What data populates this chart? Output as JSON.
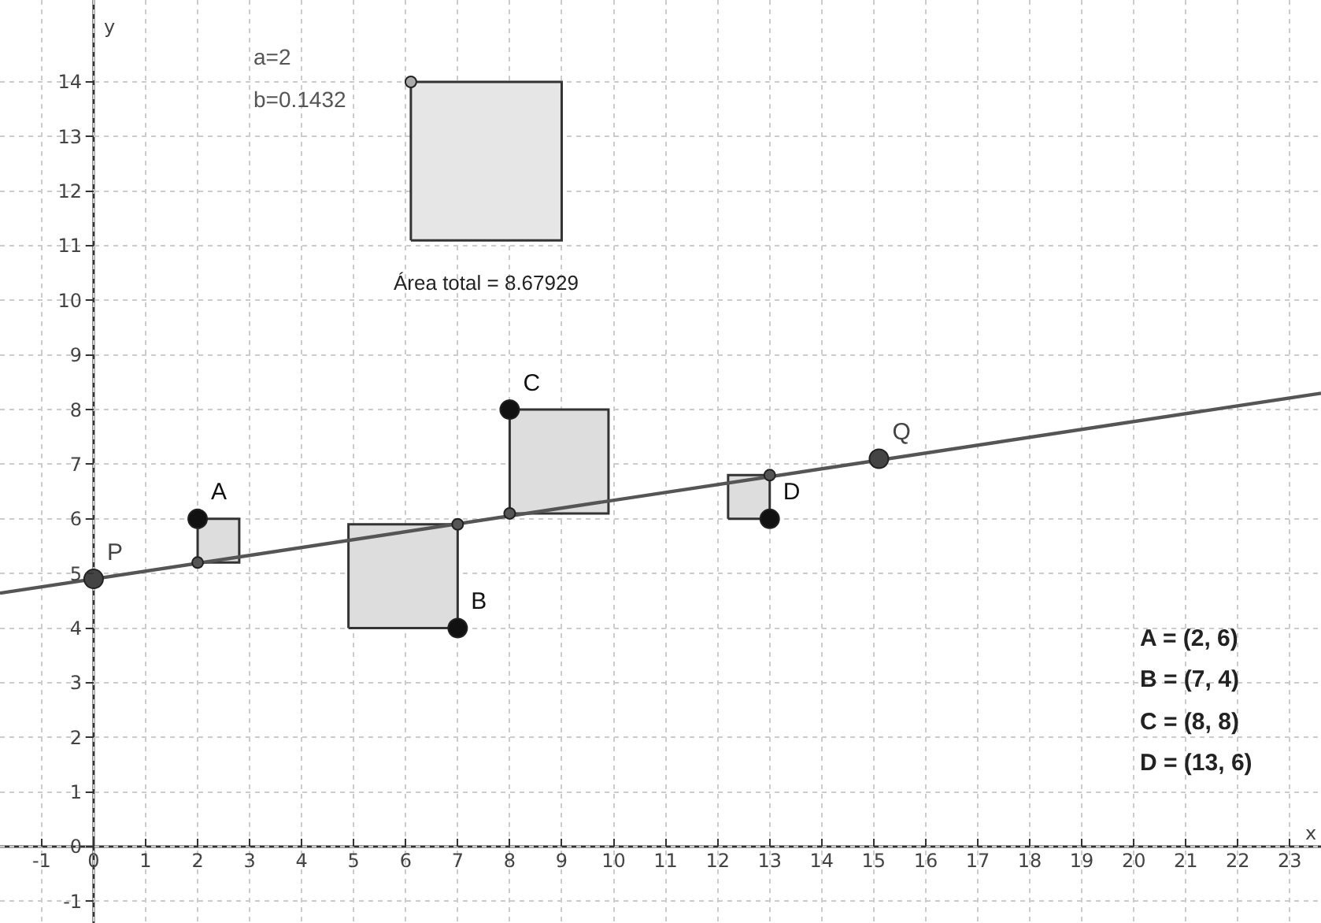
{
  "chart_data": {
    "type": "scatter",
    "xlabel": "x",
    "ylabel": "y",
    "xlim": [
      -1.8,
      23.6
    ],
    "ylim": [
      -1.4,
      15.5
    ],
    "xticks": [
      -1,
      0,
      1,
      2,
      3,
      4,
      5,
      6,
      7,
      8,
      9,
      10,
      11,
      12,
      13,
      14,
      15,
      16,
      17,
      18,
      19,
      20,
      21,
      22,
      23
    ],
    "yticks": [
      -1,
      0,
      1,
      2,
      3,
      4,
      5,
      6,
      7,
      8,
      9,
      10,
      11,
      12,
      13,
      14
    ],
    "grid": true,
    "series": [
      {
        "type": "area",
        "color": "#dddddd",
        "x": [
          2,
          2.8,
          2.8,
          2,
          2
        ],
        "values": [
          5.2,
          5.2,
          6,
          6,
          5.2
        ]
      },
      {
        "type": "area",
        "color": "#dddddd",
        "x": [
          4.9,
          7,
          7,
          4.9,
          4.9
        ],
        "values": [
          4,
          4,
          5.9,
          5.9,
          4
        ]
      },
      {
        "type": "area",
        "color": "#dddddd",
        "x": [
          8,
          9.9,
          9.9,
          8,
          8
        ],
        "values": [
          6.1,
          6.1,
          8,
          8,
          6.1
        ]
      },
      {
        "type": "area",
        "color": "#dddddd",
        "x": [
          12.2,
          13,
          13,
          12.2,
          12.2
        ],
        "values": [
          6,
          6,
          6.8,
          6.8,
          6
        ]
      },
      {
        "type": "area",
        "color": "#e6e6e6",
        "x": [
          6.1,
          9,
          9,
          6.1,
          6.1
        ],
        "values": [
          11.1,
          11.1,
          14,
          14,
          11.1
        ]
      },
      {
        "type": "line",
        "color": "#555555",
        "line_style": "solid",
        "x": [
          -1.8,
          23.6
        ],
        "values": [
          4.64,
          8.3
        ]
      },
      {
        "type": "scatter",
        "marker": "circle",
        "color": "#555555",
        "x": [
          2,
          7,
          8,
          13
        ],
        "values": [
          5.2,
          5.9,
          6.1,
          6.8
        ]
      },
      {
        "type": "scatter",
        "marker": "circle",
        "color": "#aaaaaa",
        "x": [
          6.1
        ],
        "values": [
          14
        ]
      },
      {
        "type": "scatter",
        "marker": "circle",
        "name": "P",
        "color": "#444444",
        "x": [
          0
        ],
        "values": [
          4.9
        ]
      },
      {
        "type": "scatter",
        "marker": "circle",
        "name": "Q",
        "color": "#444444",
        "x": [
          15.1
        ],
        "values": [
          7.1
        ]
      },
      {
        "type": "scatter",
        "marker": "circle",
        "name": "A",
        "color": "#111111",
        "x": [
          2
        ],
        "values": [
          6
        ]
      },
      {
        "type": "scatter",
        "marker": "circle",
        "name": "B",
        "color": "#111111",
        "x": [
          7
        ],
        "values": [
          4
        ]
      },
      {
        "type": "scatter",
        "marker": "circle",
        "name": "C",
        "color": "#111111",
        "x": [
          8
        ],
        "values": [
          8
        ]
      },
      {
        "type": "scatter",
        "marker": "circle",
        "name": "D",
        "color": "#111111",
        "x": [
          13
        ],
        "values": [
          6
        ]
      }
    ],
    "annotations": [
      "a=2",
      "b=0.1432",
      "Área total = 8.67929",
      "A = (2, 6)",
      "B = (7, 4)",
      "C = (8, 8)",
      "D = (13, 6)"
    ]
  }
}
